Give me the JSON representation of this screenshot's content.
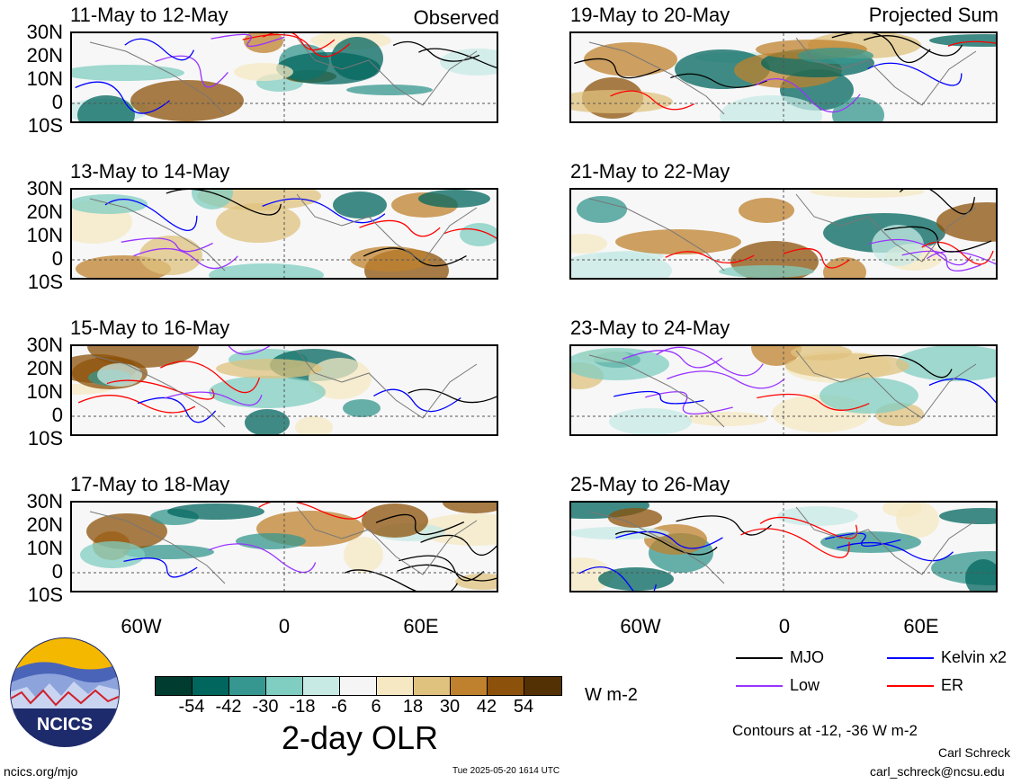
{
  "columns": {
    "left_tag": "Observed",
    "right_tag": "Projected Sum"
  },
  "panels_left": [
    {
      "title": "11-May to 12-May"
    },
    {
      "title": "13-May to 14-May"
    },
    {
      "title": "15-May to 16-May"
    },
    {
      "title": "17-May to 18-May"
    }
  ],
  "panels_right": [
    {
      "title": "19-May to 20-May"
    },
    {
      "title": "21-May to 22-May"
    },
    {
      "title": "23-May to 24-May"
    },
    {
      "title": "25-May to 26-May"
    }
  ],
  "lat_labels": [
    "30N",
    "20N",
    "10N",
    "0",
    "10S"
  ],
  "lon_labels": [
    "60W",
    "0",
    "60E"
  ],
  "colorbar": {
    "ticks": [
      "-54",
      "-42",
      "-30",
      "-18",
      "-6",
      "6",
      "18",
      "30",
      "42",
      "54"
    ],
    "colors": [
      "#003c30",
      "#01665e",
      "#35978f",
      "#80cdc1",
      "#c7eae5",
      "#f5f5f5",
      "#f6e8c3",
      "#dfc27d",
      "#bf812d",
      "#8c510a",
      "#543005"
    ],
    "units": "W m-2",
    "title": "2-day OLR"
  },
  "legend": [
    {
      "label": "MJO",
      "color": "#000000"
    },
    {
      "label": "Kelvin x2",
      "color": "#0000ff"
    },
    {
      "label": "Low",
      "color": "#9933ff"
    },
    {
      "label": "ER",
      "color": "#ff0000"
    }
  ],
  "contour_note": "Contours at -12, -36 W m-2",
  "logo_text": "NCICS",
  "footer": {
    "url": "ncics.org/mjo",
    "timestamp": "Tue 2025-05-20 1614 UTC",
    "author": "Carl Schreck",
    "email": "carl_schreck@ncsu.edu"
  }
}
